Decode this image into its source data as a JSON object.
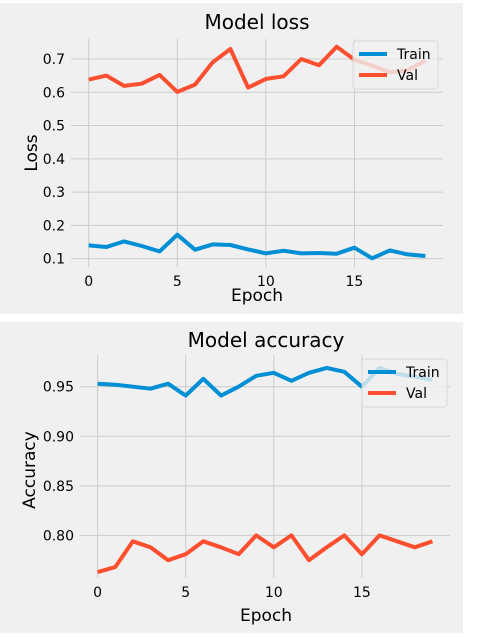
{
  "colors": {
    "figure_background": "#f0f0f0",
    "grid": "#cbcbcb",
    "train": "#008fd5",
    "val": "#fc4f30"
  },
  "chart_data": [
    {
      "type": "line",
      "title": "Model loss",
      "xlabel": "Epoch",
      "ylabel": "Loss",
      "x": [
        0,
        1,
        2,
        3,
        4,
        5,
        6,
        7,
        8,
        9,
        10,
        11,
        12,
        13,
        14,
        15,
        16,
        17,
        18,
        19
      ],
      "xlim": [
        -1,
        20
      ],
      "ylim": [
        0.075,
        0.76
      ],
      "xticks": [
        0,
        5,
        10,
        15
      ],
      "yticks": [
        0.1,
        0.2,
        0.3,
        0.4,
        0.5,
        0.6,
        0.7
      ],
      "grid": true,
      "legend_position": "top-right",
      "series": [
        {
          "name": "Train",
          "color": "#008fd5",
          "values": [
            0.14,
            0.135,
            0.152,
            0.138,
            0.122,
            0.172,
            0.127,
            0.143,
            0.141,
            0.128,
            0.116,
            0.124,
            0.116,
            0.117,
            0.115,
            0.133,
            0.101,
            0.125,
            0.113,
            0.108
          ]
        },
        {
          "name": "Val",
          "color": "#fc4f30",
          "values": [
            0.638,
            0.65,
            0.619,
            0.626,
            0.652,
            0.601,
            0.623,
            0.69,
            0.73,
            0.614,
            0.64,
            0.648,
            0.7,
            0.681,
            0.737,
            0.698,
            0.68,
            0.66,
            0.666,
            0.695
          ]
        }
      ]
    },
    {
      "type": "line",
      "title": "Model accuracy",
      "xlabel": "Epoch",
      "ylabel": "Accuracy",
      "x": [
        0,
        1,
        2,
        3,
        4,
        5,
        6,
        7,
        8,
        9,
        10,
        11,
        12,
        13,
        14,
        15,
        16,
        17,
        18,
        19
      ],
      "xlim": [
        -1,
        20
      ],
      "ylim": [
        0.757,
        0.982
      ],
      "xticks": [
        0,
        5,
        10,
        15
      ],
      "yticks": [
        0.8,
        0.85,
        0.9,
        0.95
      ],
      "grid": true,
      "legend_position": "top-right",
      "series": [
        {
          "name": "Train",
          "color": "#008fd5",
          "values": [
            0.953,
            0.952,
            0.95,
            0.948,
            0.953,
            0.941,
            0.958,
            0.941,
            0.95,
            0.961,
            0.964,
            0.956,
            0.964,
            0.969,
            0.965,
            0.95,
            0.969,
            0.963,
            0.96,
            0.957
          ]
        },
        {
          "name": "Val",
          "color": "#fc4f30",
          "values": [
            0.763,
            0.768,
            0.794,
            0.788,
            0.775,
            0.781,
            0.794,
            0.788,
            0.781,
            0.8,
            0.788,
            0.8,
            0.775,
            0.788,
            0.8,
            0.781,
            0.8,
            0.794,
            0.788,
            0.794
          ]
        }
      ]
    }
  ]
}
